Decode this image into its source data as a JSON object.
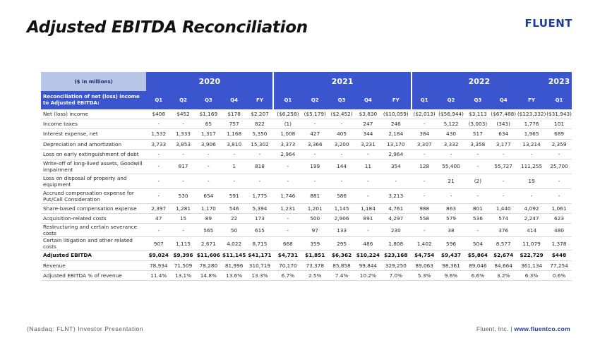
{
  "header": {
    "title": "Adjusted EBITDA Reconciliation",
    "logo": "FLUENT"
  },
  "table": {
    "unit_label": "($ in millions)",
    "years": [
      "2020",
      "2021",
      "2022",
      "2023"
    ],
    "label_header": "Reconciliation of net (loss) income to Adjusted EBITDA:",
    "columns": [
      "Q1",
      "Q2",
      "Q3",
      "Q4",
      "FY",
      "Q1",
      "Q2",
      "Q3",
      "Q4",
      "FY",
      "Q1",
      "Q2",
      "Q3",
      "Q4",
      "FY",
      "Q1"
    ],
    "rows": [
      {
        "label": "Net (loss) income",
        "values": [
          "$408",
          "$452",
          "$1,169",
          "$178",
          "$2,207",
          "($6,258)",
          "($5,179)",
          "($2,452)",
          "$3,830",
          "($10,059)",
          "($2,013)",
          "($56,944)",
          "$3,113",
          "($67,488)",
          "($123,332)",
          "($31,943)"
        ]
      },
      {
        "label": "Income taxes",
        "values": [
          "-",
          "-",
          "65",
          "757",
          "822",
          "(1)",
          "-",
          "-",
          "247",
          "246",
          "-",
          "5,122",
          "(3,003)",
          "(343)",
          "1,776",
          "101"
        ]
      },
      {
        "label": "Interest expense, net",
        "values": [
          "1,532",
          "1,333",
          "1,317",
          "1,168",
          "5,350",
          "1,008",
          "427",
          "405",
          "344",
          "2,184",
          "384",
          "430",
          "517",
          "634",
          "1,965",
          "689"
        ]
      },
      {
        "label": "Depreciation and amortization",
        "values": [
          "3,733",
          "3,853",
          "3,906",
          "3,810",
          "15,302",
          "3,373",
          "3,366",
          "3,200",
          "3,231",
          "13,170",
          "3,307",
          "3,332",
          "3,358",
          "3,177",
          "13,214",
          "2,359"
        ]
      },
      {
        "label": "Loss on early extinguishment of debt",
        "values": [
          "-",
          "-",
          "-",
          "-",
          "-",
          "2,964",
          "-",
          "-",
          "-",
          "2,964",
          "-",
          "-",
          "-",
          "-",
          "-",
          "-"
        ]
      },
      {
        "label": "Write-off of long-lived assets, Goodwill impairment",
        "tall": true,
        "values": [
          "-",
          "817",
          "-",
          "1",
          "818",
          "-",
          "199",
          "144",
          "11",
          "354",
          "128",
          "55,400",
          "-",
          "55,727",
          "111,255",
          "25,700"
        ]
      },
      {
        "label": "Loss on disposal of property and equipment",
        "tall": true,
        "values": [
          "-",
          "-",
          "-",
          "-",
          "-",
          "-",
          "-",
          "-",
          "-",
          "-",
          "-",
          "21",
          "(2)",
          "-",
          "19",
          "-"
        ]
      },
      {
        "label": "Accrued compensation expense for Put/Call Consideration",
        "tall": true,
        "values": [
          "-",
          "530",
          "654",
          "591",
          "1,775",
          "1,746",
          "881",
          "586",
          "-",
          "3,213",
          "-",
          "-",
          "-",
          "-",
          "-",
          "-"
        ]
      },
      {
        "label": "Share-based compensation expense",
        "values": [
          "2,397",
          "1,281",
          "1,170",
          "546",
          "5,394",
          "1,231",
          "1,201",
          "1,145",
          "1,184",
          "4,761",
          "988",
          "863",
          "801",
          "1,440",
          "4,092",
          "1,061"
        ]
      },
      {
        "label": "Acquisition-related costs",
        "values": [
          "47",
          "15",
          "89",
          "22",
          "173",
          "-",
          "500",
          "2,906",
          "891",
          "4,297",
          "558",
          "579",
          "536",
          "574",
          "2,247",
          "623"
        ]
      },
      {
        "label": "Restructuring and certain severance costs",
        "values": [
          "-",
          "-",
          "565",
          "50",
          "615",
          "-",
          "97",
          "133",
          "-",
          "230",
          "-",
          "38",
          "-",
          "376",
          "414",
          "480"
        ]
      },
      {
        "label": "Certain litigation and other related costs",
        "values": [
          "907",
          "1,115",
          "2,671",
          "4,022",
          "8,715",
          "668",
          "359",
          "295",
          "486",
          "1,808",
          "1,402",
          "596",
          "504",
          "8,577",
          "11,079",
          "1,378"
        ]
      },
      {
        "label": "Adjusted EBITDA",
        "bold": true,
        "values": [
          "$9,024",
          "$9,396",
          "$11,606",
          "$11,145",
          "$41,171",
          "$4,731",
          "$1,851",
          "$6,362",
          "$10,224",
          "$23,168",
          "$4,754",
          "$9,437",
          "$5,864",
          "$2,674",
          "$22,729",
          "$448"
        ]
      },
      {
        "label": "Revenue",
        "values": [
          "78,934",
          "71,509",
          "78,280",
          "81,996",
          "310,719",
          "70,170",
          "73,378",
          "85,858",
          "99,844",
          "329,250",
          "89,063",
          "98,361",
          "89,046",
          "84,664",
          "361,134",
          "77,254"
        ]
      },
      {
        "label": "Adjusted EBITDA % of revenue",
        "values": [
          "11.4%",
          "13.1%",
          "14.8%",
          "13.6%",
          "13.3%",
          "6.7%",
          "2.5%",
          "7.4%",
          "10.2%",
          "7.0%",
          "5.3%",
          "9.6%",
          "6.6%",
          "3.2%",
          "6.3%",
          "0.6%"
        ]
      }
    ]
  },
  "footer": {
    "left": "(Nasdaq: FLNT) Investor Presentation",
    "company": "Fluent, Inc. | ",
    "url": "www.fluentco.com"
  }
}
